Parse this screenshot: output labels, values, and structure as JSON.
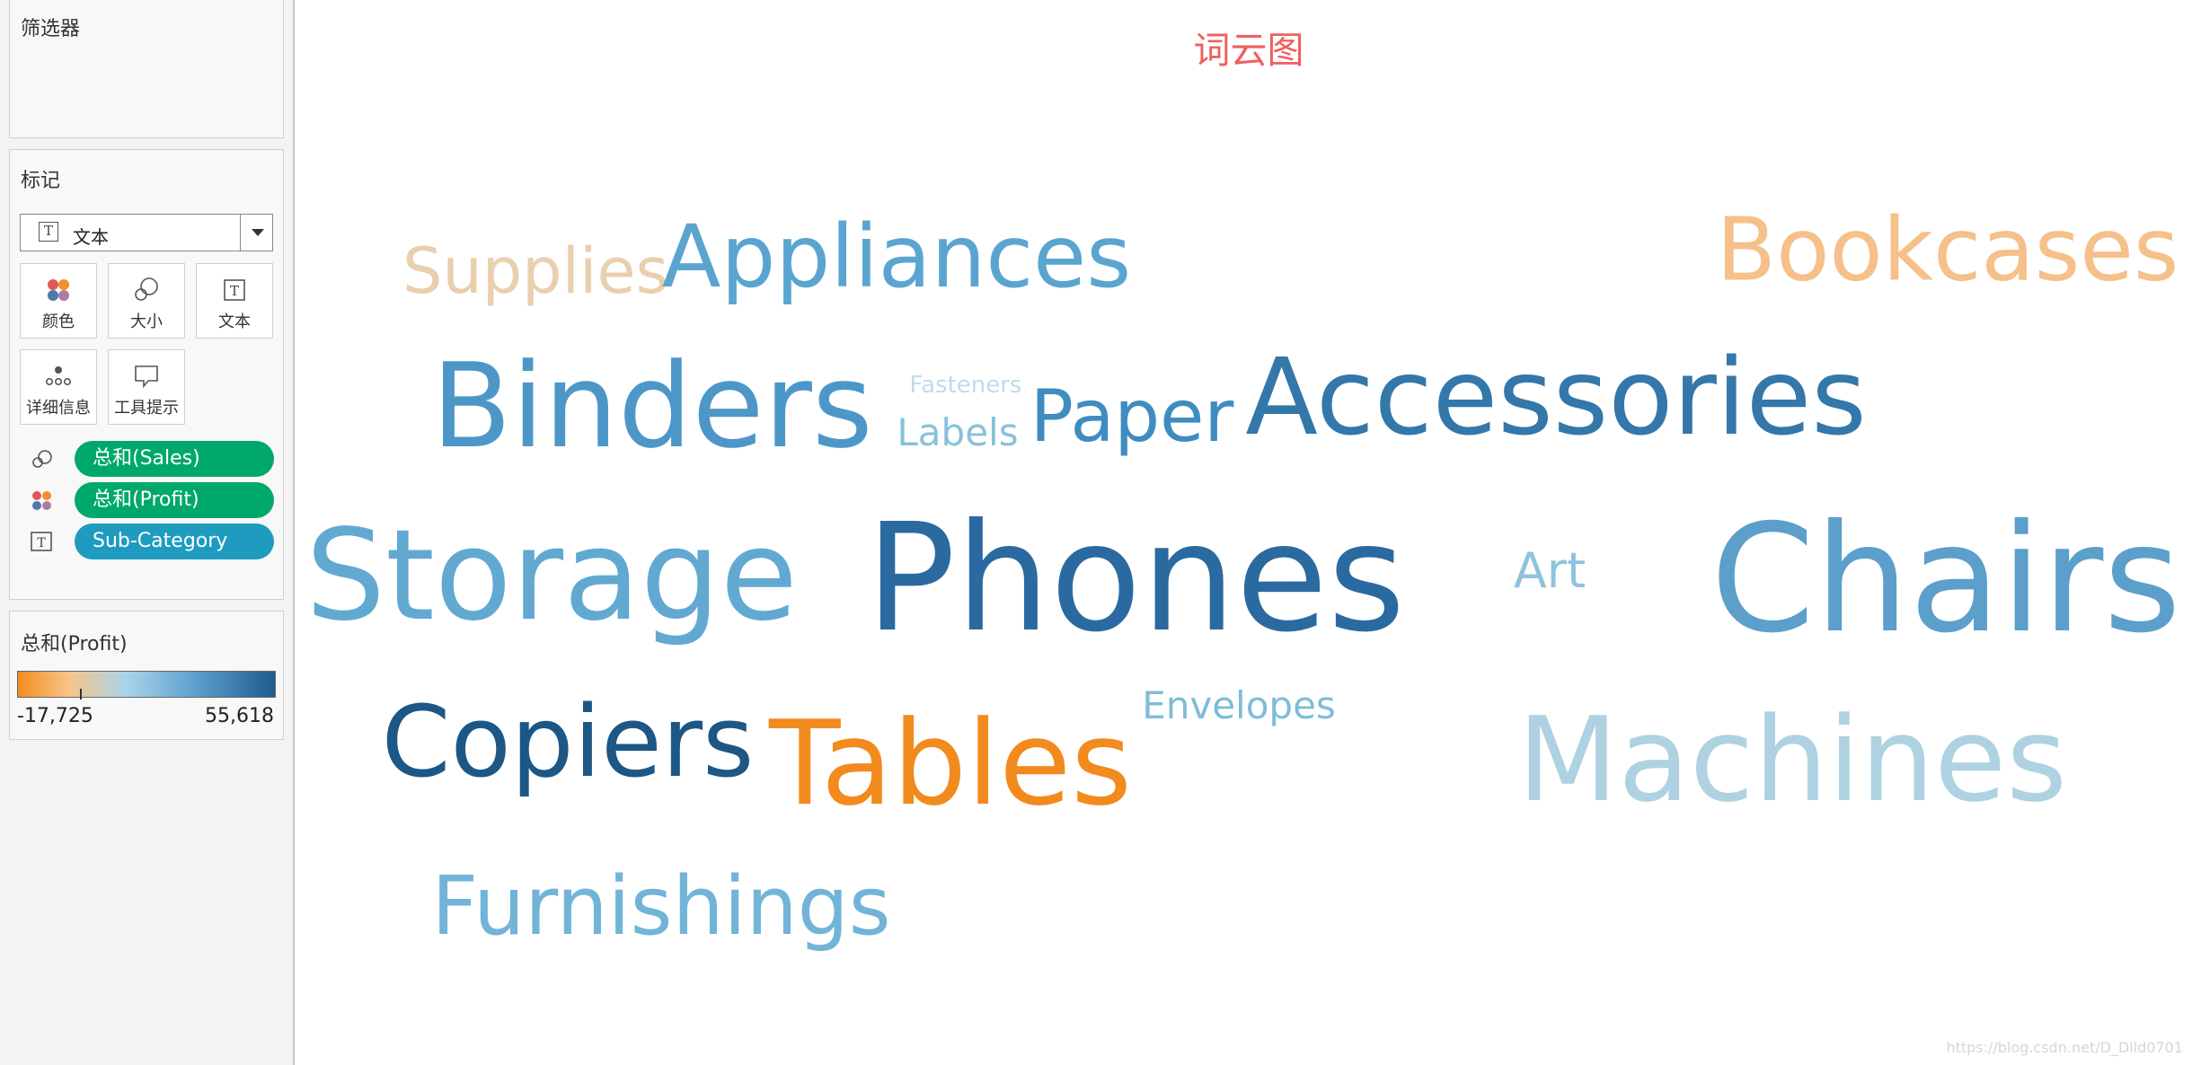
{
  "sidebar": {
    "filters_title": "筛选器",
    "marks_title": "标记",
    "mark_type": {
      "icon": "text-T-icon",
      "label": "文本"
    },
    "mark_buttons": [
      {
        "label": "颜色",
        "icon": "color-dots-icon"
      },
      {
        "label": "大小",
        "icon": "size-circles-icon"
      },
      {
        "label": "文本",
        "icon": "text-T-icon"
      },
      {
        "label": "详细信息",
        "icon": "detail-dots-icon"
      },
      {
        "label": "工具提示",
        "icon": "tooltip-bubble-icon"
      }
    ],
    "pills": [
      {
        "label": "总和(Sales)",
        "encoding": "size",
        "color": "#00a86b"
      },
      {
        "label": "总和(Profit)",
        "encoding": "color",
        "color": "#00a86b"
      },
      {
        "label": "Sub-Category",
        "encoding": "text",
        "color": "#1f9bbf"
      }
    ],
    "legend": {
      "title": "总和(Profit)",
      "min": "-17,725",
      "max": "55,618",
      "gradient": [
        "#f28e1c",
        "#f9c48a",
        "#a9d4ea",
        "#5fa2ce",
        "#1f5b8e"
      ]
    }
  },
  "chart_title": "词云图",
  "chart_data": {
    "type": "word-cloud",
    "size_measure": "总和(Sales)",
    "color_measure": "总和(Profit)",
    "text_field": "Sub-Category",
    "words": [
      {
        "text": "Supplies",
        "color": "#e9cfae"
      },
      {
        "text": "Appliances",
        "color": "#5aa5cf"
      },
      {
        "text": "Bookcases",
        "color": "#f6c08a"
      },
      {
        "text": "Binders",
        "color": "#4d97c8"
      },
      {
        "text": "Fasteners",
        "color": "#c2dbe8"
      },
      {
        "text": "Labels",
        "color": "#88c0dc"
      },
      {
        "text": "Paper",
        "color": "#3f8cc0"
      },
      {
        "text": "Accessories",
        "color": "#3477aa"
      },
      {
        "text": "Storage",
        "color": "#62a9d2"
      },
      {
        "text": "Phones",
        "color": "#2b6aa0"
      },
      {
        "text": "Art",
        "color": "#8ec3dd"
      },
      {
        "text": "Chairs",
        "color": "#5c9fcb"
      },
      {
        "text": "Copiers",
        "color": "#1c5786"
      },
      {
        "text": "Tables",
        "color": "#f28a1e"
      },
      {
        "text": "Envelopes",
        "color": "#7fbcda"
      },
      {
        "text": "Machines",
        "color": "#aed2e2"
      },
      {
        "text": "Furnishings",
        "color": "#72b4d8"
      }
    ]
  },
  "watermark": "https://blog.csdn.net/D_Dlld0701"
}
